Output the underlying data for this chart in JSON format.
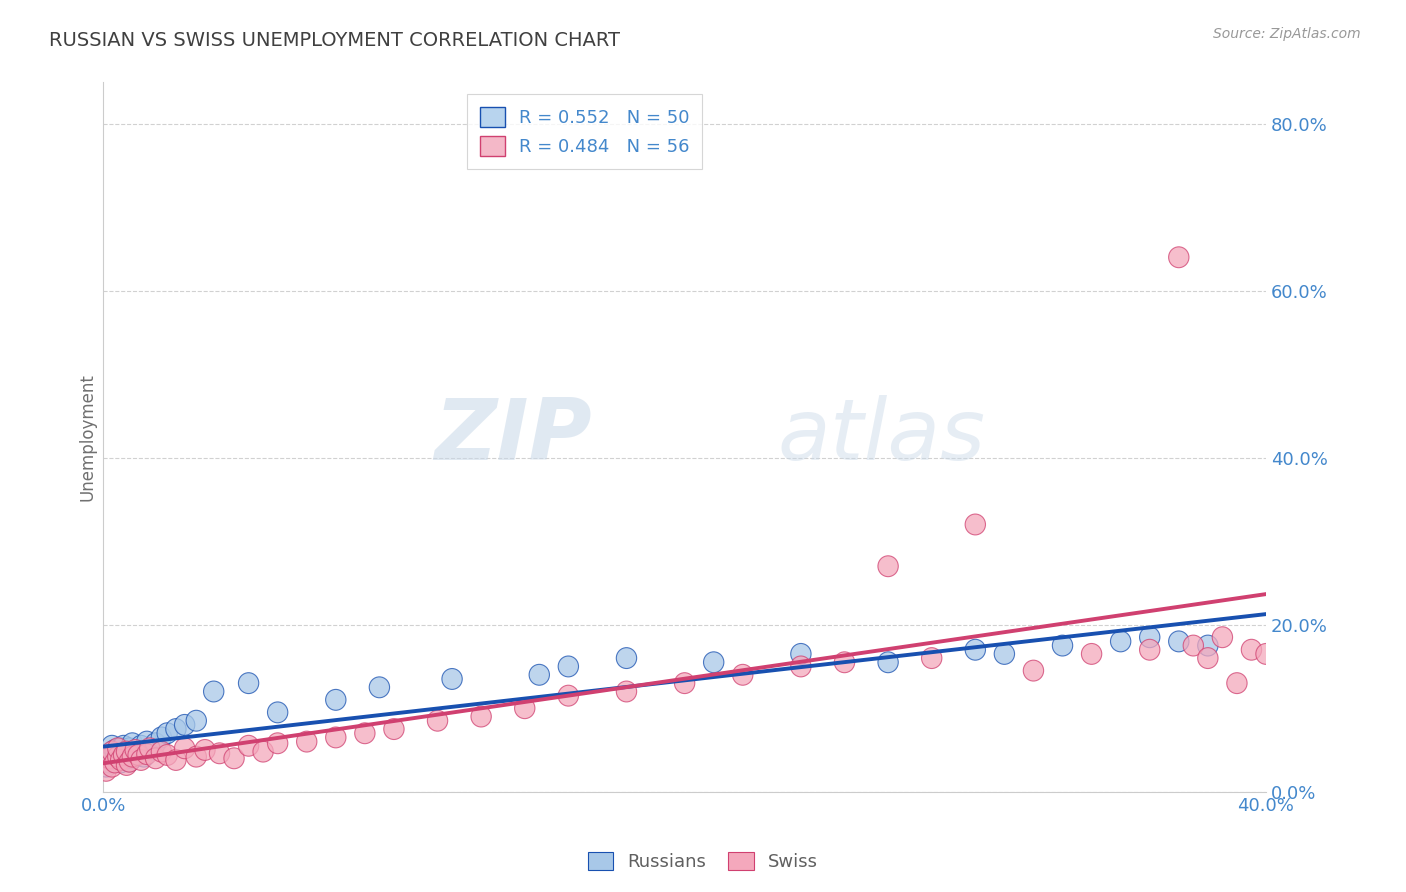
{
  "title": "RUSSIAN VS SWISS UNEMPLOYMENT CORRELATION CHART",
  "source_text": "Source: ZipAtlas.com",
  "ylabel": "Unemployment",
  "y_tick_labels": [
    "0.0%",
    "20.0%",
    "40.0%",
    "60.0%",
    "80.0%"
  ],
  "y_tick_values": [
    0.0,
    0.2,
    0.4,
    0.6,
    0.8
  ],
  "x_tick_values": [
    0.0,
    0.4
  ],
  "xlim": [
    0.0,
    0.4
  ],
  "ylim": [
    0.0,
    0.85
  ],
  "legend_entries": [
    {
      "label": "R = 0.552   N = 50",
      "color": "#b8d4ee"
    },
    {
      "label": "R = 0.484   N = 56",
      "color": "#f4b8c8"
    }
  ],
  "legend_label_russians": "Russians",
  "legend_label_swiss": "Swiss",
  "blue_scatter_color": "#a8c8e8",
  "pink_scatter_color": "#f4a8bc",
  "blue_line_color": "#1850b0",
  "pink_line_color": "#d04070",
  "watermark_zip": "ZIP",
  "watermark_atlas": "atlas",
  "title_color": "#404040",
  "axis_label_color": "#4488cc",
  "background_color": "#ffffff",
  "russians_x": [
    0.001,
    0.002,
    0.002,
    0.003,
    0.003,
    0.004,
    0.004,
    0.005,
    0.005,
    0.006,
    0.006,
    0.007,
    0.007,
    0.008,
    0.008,
    0.009,
    0.009,
    0.01,
    0.01,
    0.011,
    0.012,
    0.013,
    0.014,
    0.015,
    0.016,
    0.018,
    0.02,
    0.022,
    0.025,
    0.028,
    0.032,
    0.038,
    0.05,
    0.06,
    0.08,
    0.095,
    0.12,
    0.15,
    0.16,
    0.18,
    0.21,
    0.24,
    0.27,
    0.3,
    0.31,
    0.33,
    0.35,
    0.36,
    0.37,
    0.38
  ],
  "russians_y": [
    0.03,
    0.045,
    0.035,
    0.04,
    0.055,
    0.038,
    0.05,
    0.042,
    0.048,
    0.035,
    0.052,
    0.038,
    0.055,
    0.042,
    0.048,
    0.036,
    0.052,
    0.04,
    0.058,
    0.044,
    0.048,
    0.055,
    0.042,
    0.06,
    0.05,
    0.058,
    0.065,
    0.07,
    0.075,
    0.08,
    0.085,
    0.12,
    0.13,
    0.095,
    0.11,
    0.125,
    0.135,
    0.14,
    0.15,
    0.16,
    0.155,
    0.165,
    0.155,
    0.17,
    0.165,
    0.175,
    0.18,
    0.185,
    0.18,
    0.175
  ],
  "swiss_x": [
    0.001,
    0.002,
    0.003,
    0.003,
    0.004,
    0.005,
    0.005,
    0.006,
    0.007,
    0.008,
    0.008,
    0.009,
    0.01,
    0.011,
    0.012,
    0.013,
    0.015,
    0.016,
    0.018,
    0.02,
    0.022,
    0.025,
    0.028,
    0.032,
    0.035,
    0.04,
    0.045,
    0.05,
    0.055,
    0.06,
    0.07,
    0.08,
    0.09,
    0.1,
    0.115,
    0.13,
    0.145,
    0.16,
    0.18,
    0.2,
    0.22,
    0.24,
    0.255,
    0.27,
    0.285,
    0.3,
    0.32,
    0.34,
    0.36,
    0.37,
    0.375,
    0.38,
    0.385,
    0.39,
    0.395,
    0.4
  ],
  "swiss_y": [
    0.025,
    0.04,
    0.03,
    0.048,
    0.035,
    0.042,
    0.052,
    0.038,
    0.044,
    0.032,
    0.048,
    0.036,
    0.042,
    0.05,
    0.044,
    0.038,
    0.045,
    0.052,
    0.04,
    0.048,
    0.044,
    0.038,
    0.052,
    0.042,
    0.05,
    0.046,
    0.04,
    0.055,
    0.048,
    0.058,
    0.06,
    0.065,
    0.07,
    0.075,
    0.085,
    0.09,
    0.1,
    0.115,
    0.12,
    0.13,
    0.14,
    0.15,
    0.155,
    0.27,
    0.16,
    0.32,
    0.145,
    0.165,
    0.17,
    0.64,
    0.175,
    0.16,
    0.185,
    0.13,
    0.17,
    0.165
  ]
}
